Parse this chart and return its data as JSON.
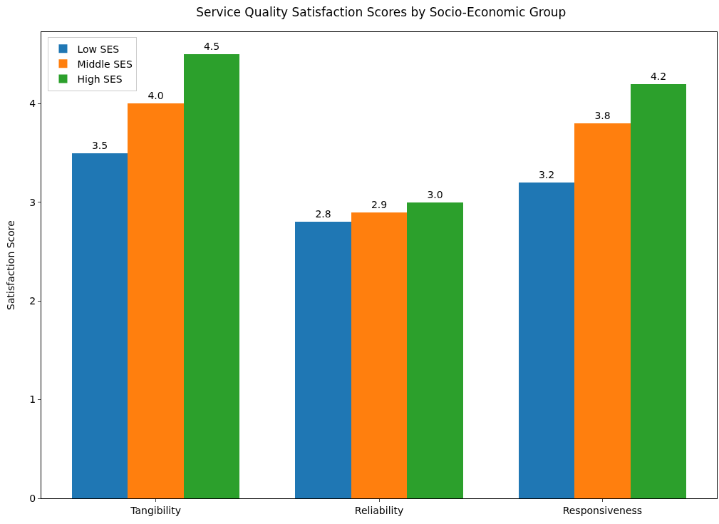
{
  "chart_data": {
    "type": "bar",
    "title": "Service Quality Satisfaction Scores by Socio-Economic Group",
    "ylabel": "Satisfaction Score",
    "categories": [
      "Tangibility",
      "Reliability",
      "Responsiveness"
    ],
    "series": [
      {
        "name": "Low SES",
        "color": "#1f77b4",
        "values": [
          3.5,
          2.8,
          3.2
        ],
        "value_labels": [
          "3.5",
          "2.8",
          "3.2"
        ]
      },
      {
        "name": "Middle SES",
        "color": "#ff7f0e",
        "values": [
          4.0,
          2.9,
          3.8
        ],
        "value_labels": [
          "4.0",
          "2.9",
          "3.8"
        ]
      },
      {
        "name": "High SES",
        "color": "#2ca02c",
        "values": [
          4.5,
          3.0,
          4.2
        ],
        "value_labels": [
          "4.5",
          "3.0",
          "4.2"
        ]
      }
    ],
    "ylim": [
      0,
      4.725
    ],
    "yticks": [
      0,
      1,
      2,
      3,
      4
    ],
    "grid": false,
    "legend": "top left"
  }
}
